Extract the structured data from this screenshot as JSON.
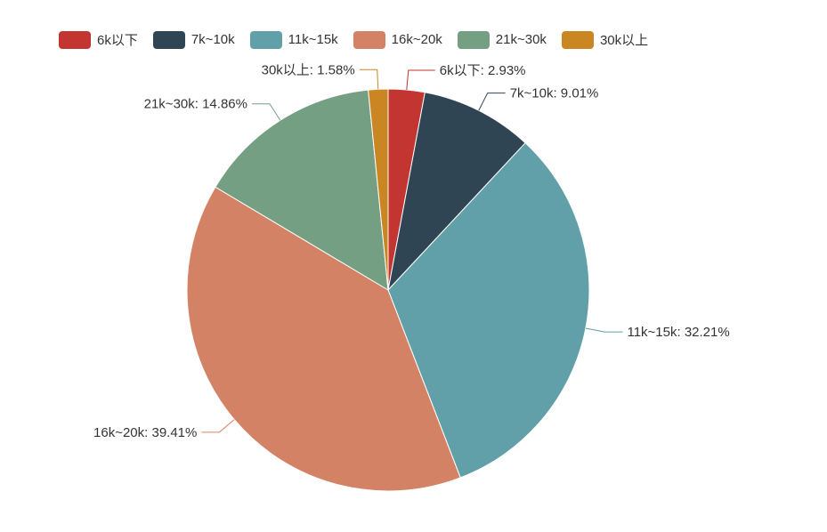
{
  "chart_data": {
    "type": "pie",
    "title": "",
    "legend_position": "top-left",
    "slices": [
      {
        "label": "6k以下",
        "value": 2.93,
        "display": "6k以下: 2.93%",
        "color": "#c23531"
      },
      {
        "label": "7k~10k",
        "value": 9.01,
        "display": "7k~10k: 9.01%",
        "color": "#2f4554"
      },
      {
        "label": "11k~15k",
        "value": 32.21,
        "display": "11k~15k: 32.21%",
        "color": "#61a0a8"
      },
      {
        "label": "16k~20k",
        "value": 39.41,
        "display": "16k~20k: 39.41%",
        "color": "#d48265"
      },
      {
        "label": "21k~30k",
        "value": 14.86,
        "display": "21k~30k: 14.86%",
        "color": "#749f83"
      },
      {
        "label": "30k以上",
        "value": 1.58,
        "display": "30k以上: 1.58%",
        "color": "#ca8622"
      }
    ]
  }
}
